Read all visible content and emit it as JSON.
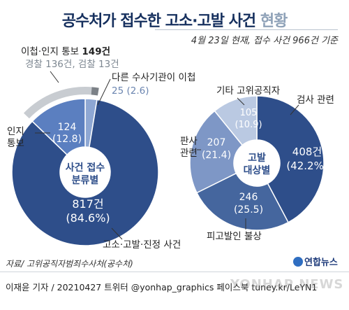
{
  "header": {
    "title_main": "공수처가 접수한 고소·고발 사건",
    "title_tail": "현황",
    "subtitle": "4월 23일 현재, 접수 사건 966건 기준"
  },
  "chart_data": [
    {
      "type": "pie",
      "center_label": [
        "사건 접수",
        "분류별"
      ],
      "total": 966,
      "slices": [
        {
          "label": "고소·고발·진정 사건",
          "value": 817,
          "percent": 84.6,
          "value_text": "817건",
          "percent_text": "(84.6%)",
          "color": "#2e4e8a"
        },
        {
          "label": "인지 통보",
          "value": 124,
          "percent": 12.8,
          "value_text": "124",
          "percent_text": "(12.8)",
          "color": "#5b7fc0"
        },
        {
          "label": "다른 수사기관이 이첩",
          "value": 25,
          "percent": 2.6,
          "value_text": "25 (2.6)",
          "percent_text": "",
          "color": "#8ea7d3"
        }
      ],
      "callout": {
        "title": "이첩·인지 통보",
        "title_value": "149건",
        "breakdown": "경찰 136건, 검찰 13건",
        "segments": [
          {
            "label": "경찰",
            "value": 136,
            "color": "#c8ccd1"
          },
          {
            "label": "검찰",
            "value": 13,
            "color": "#7c8187"
          }
        ]
      }
    },
    {
      "type": "pie",
      "center_label": [
        "고발",
        "대상별"
      ],
      "slices": [
        {
          "label": "검사 관련",
          "value": 408,
          "percent": 42.2,
          "value_text": "408건",
          "percent_text": "(42.2%)",
          "color": "#2e4e8a"
        },
        {
          "label": "피고발인 불상",
          "value": 246,
          "percent": 25.5,
          "value_text": "246",
          "percent_text": "(25.5)",
          "color": "#45669e"
        },
        {
          "label": "판사 관련",
          "value": 207,
          "percent": 21.4,
          "value_text": "207",
          "percent_text": "(21.4)",
          "color": "#7e97c6"
        },
        {
          "label": "기타 고위공직자",
          "value": 105,
          "percent": 10.9,
          "value_text": "105",
          "percent_text": "(10.9)",
          "color": "#bac9e2"
        }
      ]
    }
  ],
  "colors": {
    "center": "#ffffff",
    "center_text": "#2e4e8a",
    "navy": "#2e4e8a",
    "title": "#16305e"
  },
  "footer": {
    "source": "자료/ 고위공직자범죄수사처(공수처)",
    "logo": "연합뉴스",
    "credit": "이재윤 기자 / 20210427  트위터 @yonhap_graphics  페이스북 tuney.kr/LeYN1",
    "watermark": "YONHAP NEWS"
  }
}
